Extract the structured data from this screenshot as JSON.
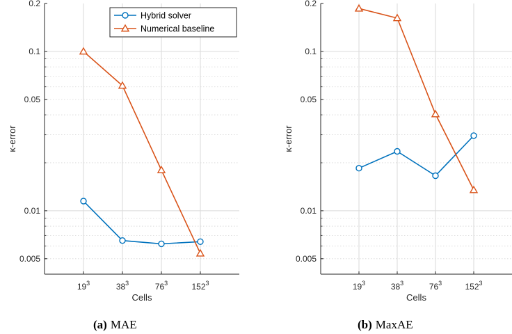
{
  "chart_data": [
    {
      "type": "line",
      "panel_label": "(a)",
      "caption": "MAE",
      "xlabel": "Cells",
      "ylabel": "κ-error",
      "yscale": "log",
      "ylim": [
        0.004,
        0.2
      ],
      "yticks": [
        0.005,
        0.01,
        0.05,
        0.1,
        0.2
      ],
      "grid": true,
      "legend": "top-right",
      "categories": [
        {
          "base": "19",
          "exp": "3"
        },
        {
          "base": "38",
          "exp": "3"
        },
        {
          "base": "76",
          "exp": "3"
        },
        {
          "base": "152",
          "exp": "3"
        }
      ],
      "series": [
        {
          "name": "Hybrid solver",
          "color": "#0072BD",
          "marker": "circle",
          "values": [
            0.0115,
            0.0065,
            0.0062,
            0.0064
          ]
        },
        {
          "name": "Numerical baseline",
          "color": "#D95319",
          "marker": "triangle",
          "values": [
            0.1,
            0.061,
            0.018,
            0.0054
          ]
        }
      ]
    },
    {
      "type": "line",
      "panel_label": "(b)",
      "caption": "MaxAE",
      "xlabel": "Cells",
      "ylabel": "κ-error",
      "yscale": "log",
      "ylim": [
        0.004,
        0.2
      ],
      "yticks": [
        0.005,
        0.01,
        0.05,
        0.1,
        0.2
      ],
      "grid": true,
      "categories": [
        {
          "base": "19",
          "exp": "3"
        },
        {
          "base": "38",
          "exp": "3"
        },
        {
          "base": "76",
          "exp": "3"
        },
        {
          "base": "152",
          "exp": "3"
        }
      ],
      "series": [
        {
          "name": "Hybrid solver",
          "color": "#0072BD",
          "marker": "circle",
          "values": [
            0.0185,
            0.0236,
            0.0166,
            0.0296
          ]
        },
        {
          "name": "Numerical baseline",
          "color": "#D95319",
          "marker": "triangle",
          "values": [
            0.186,
            0.162,
            0.0404,
            0.0135
          ]
        }
      ]
    }
  ]
}
